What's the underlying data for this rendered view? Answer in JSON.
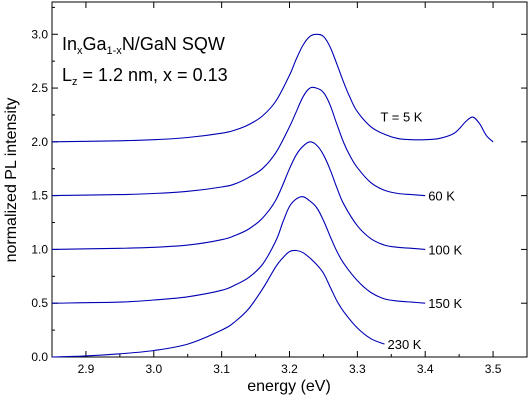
{
  "chart_data": {
    "type": "line",
    "title": "",
    "xlabel": "energy (eV)",
    "ylabel": "normalized PL intensity",
    "xlim": [
      2.85,
      3.55
    ],
    "ylim": [
      0.0,
      3.3
    ],
    "grid": false,
    "xticks": [
      "2.9",
      "3.0",
      "3.1",
      "3.2",
      "3.3",
      "3.4",
      "3.5"
    ],
    "yticks": [
      "0.0",
      "0.5",
      "1.0",
      "1.5",
      "2.0",
      "2.5",
      "3.0"
    ],
    "annotation": {
      "line1": {
        "p1": "In",
        "s1": "x",
        "p2": "Ga",
        "s2": "1-x",
        "p3": "N/GaN SQW"
      },
      "line2": {
        "p1": "L",
        "s1": "z",
        "p2": " = 1.2 nm, x = 0.13"
      }
    },
    "series": [
      {
        "label": "T = 5 K",
        "temperature": "5 K",
        "color": "#0000b4",
        "offset": 2.0,
        "x": [
          2.85,
          2.95,
          3.0,
          3.05,
          3.1,
          3.12,
          3.14,
          3.16,
          3.18,
          3.2,
          3.21,
          3.22,
          3.23,
          3.24,
          3.25,
          3.26,
          3.27,
          3.28,
          3.29,
          3.3,
          3.32,
          3.34,
          3.36,
          3.38,
          3.4,
          3.42,
          3.44,
          3.45,
          3.46,
          3.47,
          3.48,
          3.49,
          3.5
        ],
        "y": [
          2.0,
          2.01,
          2.02,
          2.04,
          2.08,
          2.11,
          2.16,
          2.24,
          2.38,
          2.62,
          2.77,
          2.9,
          2.98,
          3.0,
          2.98,
          2.88,
          2.72,
          2.55,
          2.4,
          2.28,
          2.14,
          2.07,
          2.03,
          2.02,
          2.02,
          2.03,
          2.07,
          2.12,
          2.19,
          2.23,
          2.17,
          2.06,
          2.0
        ]
      },
      {
        "label": "60 K",
        "temperature": "60 K",
        "color": "#0000b4",
        "offset": 1.5,
        "x": [
          2.85,
          2.95,
          3.0,
          3.05,
          3.1,
          3.12,
          3.14,
          3.16,
          3.18,
          3.2,
          3.21,
          3.22,
          3.23,
          3.24,
          3.25,
          3.26,
          3.27,
          3.28,
          3.29,
          3.3,
          3.32,
          3.34,
          3.36,
          3.38,
          3.4
        ],
        "y": [
          1.5,
          1.51,
          1.52,
          1.54,
          1.58,
          1.61,
          1.67,
          1.75,
          1.9,
          2.14,
          2.28,
          2.42,
          2.5,
          2.5,
          2.46,
          2.34,
          2.16,
          1.99,
          1.86,
          1.76,
          1.62,
          1.55,
          1.52,
          1.51,
          1.5
        ]
      },
      {
        "label": "100 K",
        "temperature": "100 K",
        "color": "#0000b4",
        "offset": 1.0,
        "x": [
          2.85,
          2.95,
          3.0,
          3.05,
          3.1,
          3.12,
          3.14,
          3.16,
          3.18,
          3.2,
          3.21,
          3.22,
          3.23,
          3.24,
          3.25,
          3.26,
          3.27,
          3.28,
          3.3,
          3.32,
          3.34,
          3.36,
          3.38,
          3.4
        ],
        "y": [
          1.0,
          1.01,
          1.02,
          1.04,
          1.09,
          1.13,
          1.19,
          1.29,
          1.46,
          1.75,
          1.88,
          1.96,
          2.0,
          1.97,
          1.88,
          1.74,
          1.57,
          1.42,
          1.22,
          1.1,
          1.04,
          1.02,
          1.01,
          1.0
        ]
      },
      {
        "label": "150 K",
        "temperature": "150 K",
        "color": "#0000b4",
        "offset": 0.5,
        "x": [
          2.85,
          2.95,
          3.0,
          3.05,
          3.1,
          3.12,
          3.14,
          3.16,
          3.18,
          3.19,
          3.2,
          3.21,
          3.22,
          3.23,
          3.24,
          3.25,
          3.26,
          3.27,
          3.28,
          3.3,
          3.32,
          3.34,
          3.36,
          3.38,
          3.4
        ],
        "y": [
          0.5,
          0.51,
          0.53,
          0.56,
          0.62,
          0.67,
          0.74,
          0.86,
          1.08,
          1.25,
          1.4,
          1.47,
          1.49,
          1.45,
          1.39,
          1.27,
          1.12,
          0.98,
          0.87,
          0.71,
          0.6,
          0.54,
          0.52,
          0.51,
          0.5
        ]
      },
      {
        "label": "230 K",
        "temperature": "230 K",
        "color": "#0000b4",
        "offset": 0.0,
        "x": [
          2.85,
          2.9,
          2.95,
          3.0,
          3.05,
          3.1,
          3.12,
          3.14,
          3.16,
          3.18,
          3.19,
          3.2,
          3.21,
          3.22,
          3.23,
          3.24,
          3.25,
          3.26,
          3.27,
          3.28,
          3.3,
          3.32,
          3.34
        ],
        "y": [
          0.0,
          0.01,
          0.03,
          0.06,
          0.12,
          0.25,
          0.33,
          0.45,
          0.63,
          0.84,
          0.92,
          0.98,
          0.99,
          0.97,
          0.92,
          0.86,
          0.78,
          0.65,
          0.52,
          0.42,
          0.27,
          0.17,
          0.12
        ]
      }
    ]
  }
}
